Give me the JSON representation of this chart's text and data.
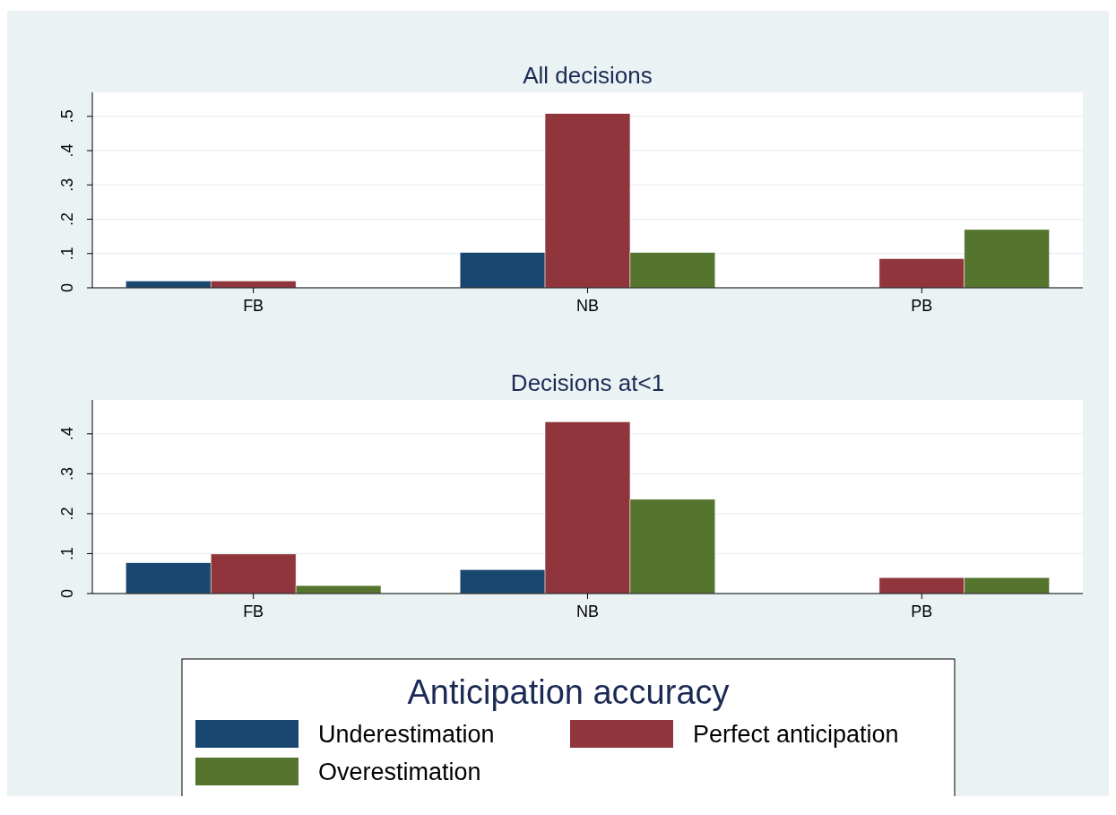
{
  "chart_data": [
    {
      "type": "bar",
      "title": "All decisions",
      "categories": [
        "FB",
        "NB",
        "PB"
      ],
      "series": [
        {
          "color": "#1a476f",
          "values": [
            0.02,
            0.103,
            null
          ]
        },
        {
          "color": "#90353b",
          "values": [
            0.02,
            0.508,
            0.085
          ]
        },
        {
          "color": "#55752f",
          "values": [
            null,
            0.103,
            0.17
          ]
        }
      ],
      "ylim": [
        0,
        0.57
      ],
      "yticks": [
        0,
        {
          "value": 0.1,
          "label": ".1"
        },
        {
          "value": 0.2,
          "label": ".2"
        },
        {
          "value": 0.3,
          "label": ".3"
        },
        {
          "value": 0.4,
          "label": ".4"
        },
        {
          "value": 0.5,
          "label": ".5"
        }
      ],
      "grid": "y",
      "legend": false
    },
    {
      "type": "bar",
      "title": "Decisions at<1",
      "categories": [
        "FB",
        "NB",
        "PB"
      ],
      "series": [
        {
          "name": "Underestimation",
          "color": "#1a476f",
          "values": [
            0.077,
            0.06,
            null
          ]
        },
        {
          "name": "Perfect anticipation",
          "color": "#90353b",
          "values": [
            0.099,
            0.43,
            0.04
          ]
        },
        {
          "name": "Overestimation",
          "color": "#55752f",
          "values": [
            0.02,
            0.236,
            0.04
          ]
        }
      ],
      "ylim": [
        0,
        0.485
      ],
      "yticks": [
        0,
        {
          "value": 0.1,
          "label": ".1"
        },
        {
          "value": 0.2,
          "label": ".2"
        },
        {
          "value": 0.3,
          "label": ".3"
        },
        {
          "value": 0.4,
          "label": ".4"
        }
      ],
      "grid": "y",
      "legend": "bottom",
      "legend_title": "Anticipation accuracy"
    }
  ]
}
